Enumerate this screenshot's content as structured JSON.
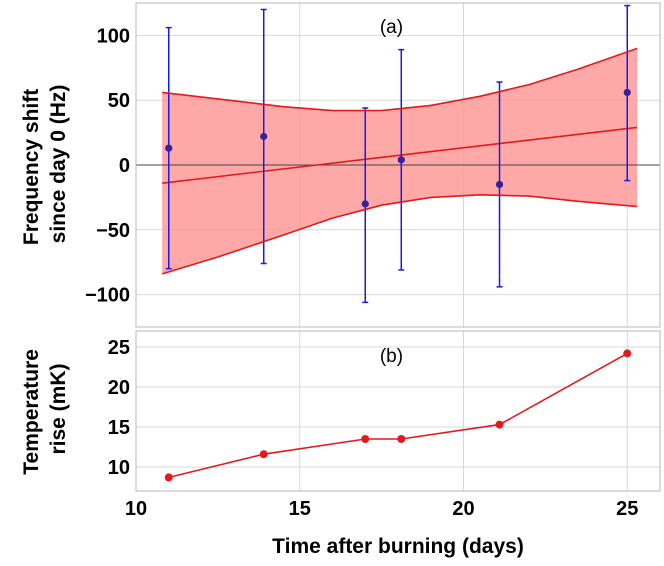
{
  "chart_data": [
    {
      "type": "scatter",
      "panel_label": "(a)",
      "ylabel_line1": "Frequency shift",
      "ylabel_line2": "since day 0 (Hz)",
      "xlim": [
        10,
        26
      ],
      "ylim": [
        -125,
        125
      ],
      "yticks": [
        -100,
        -50,
        0,
        50,
        100
      ],
      "ytick_labels": [
        "−100",
        "−50",
        "0",
        "50",
        "100"
      ],
      "grid": true,
      "colors": {
        "points": "#3b1e9e",
        "errorbars": "#1a1ae6",
        "fit": "#e31a1c",
        "band": "#ff9999"
      },
      "points": [
        {
          "x": 11.0,
          "y": 13,
          "err_low": -80,
          "err_high": 106
        },
        {
          "x": 13.9,
          "y": 22,
          "err_low": -76,
          "err_high": 120
        },
        {
          "x": 17.0,
          "y": -30,
          "err_low": -106,
          "err_high": 44
        },
        {
          "x": 18.1,
          "y": 4,
          "err_low": -81,
          "err_high": 89
        },
        {
          "x": 21.1,
          "y": -15,
          "err_low": -94,
          "err_high": 64
        },
        {
          "x": 25.0,
          "y": 56,
          "err_low": -12,
          "err_high": 123
        }
      ],
      "fit_line": {
        "x": [
          10.8,
          25.3
        ],
        "y": [
          -14,
          29
        ]
      },
      "band": {
        "x": [
          10.8,
          12.5,
          14.5,
          16.0,
          17.5,
          19.0,
          20.5,
          22.0,
          23.5,
          25.3
        ],
        "upper": [
          56,
          51,
          45,
          42,
          42,
          46,
          53,
          62,
          74,
          90
        ],
        "lower": [
          -84,
          -71,
          -54,
          -41,
          -31,
          -25,
          -23,
          -24,
          -28,
          -32
        ]
      },
      "zero_line": 0
    },
    {
      "type": "line",
      "panel_label": "(b)",
      "ylabel_line1": "Temperature",
      "ylabel_line2": "rise (mK)",
      "xlabel": "Time after burning (days)",
      "xlim": [
        10,
        26
      ],
      "ylim": [
        7,
        27
      ],
      "xticks": [
        10,
        15,
        20,
        25
      ],
      "yticks": [
        10,
        15,
        20,
        25
      ],
      "grid": true,
      "colors": {
        "line": "#e31a1c",
        "points": "#e31a1c"
      },
      "x": [
        11.0,
        13.9,
        17.0,
        18.1,
        21.1,
        25.0
      ],
      "values": [
        8.7,
        11.6,
        13.5,
        13.5,
        15.3,
        24.2
      ]
    }
  ]
}
